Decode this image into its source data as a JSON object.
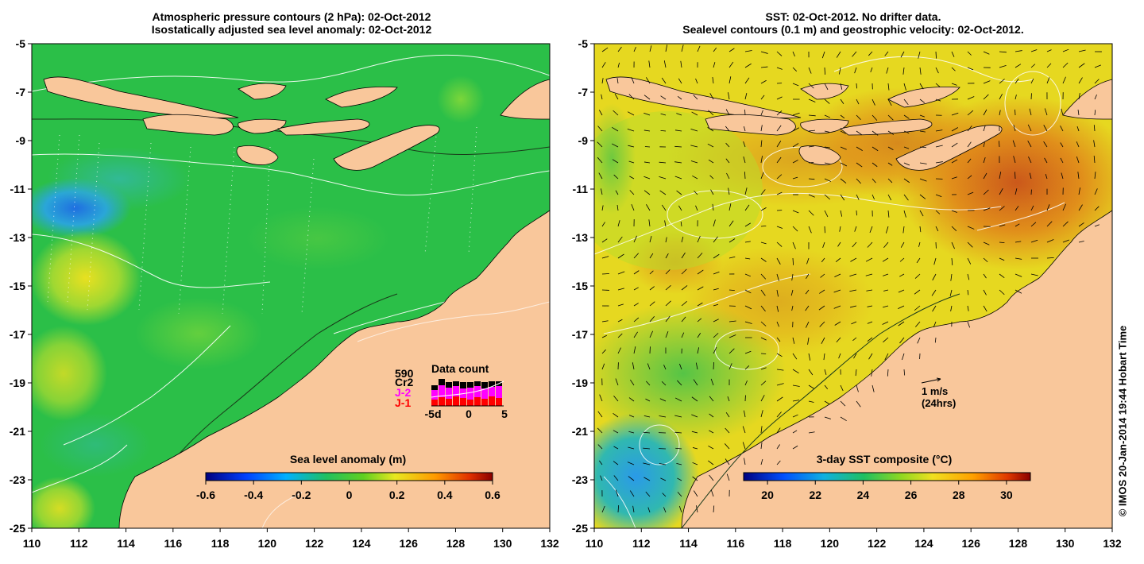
{
  "left_panel": {
    "title_line1": "Atmospheric pressure contours (2 hPa): 02-Oct-2012",
    "title_line2": "Isostatically adjusted sea level anomaly: 02-Oct-2012",
    "colorbar": {
      "label": "Sea level anomaly (m)",
      "ticks": [
        "-0.6",
        "-0.4",
        "-0.2",
        "0",
        "0.2",
        "0.4",
        "0.6"
      ]
    },
    "inset": {
      "title": "Data count",
      "total": "590",
      "missions": [
        {
          "name": "Cr2",
          "color": "#000000"
        },
        {
          "name": "J-2",
          "color": "#ff00ff"
        },
        {
          "name": "J-1",
          "color": "#ff0000"
        }
      ],
      "x_labels": [
        "-5d",
        "0",
        "5"
      ]
    }
  },
  "right_panel": {
    "title_line1": "SST: 02-Oct-2012. No drifter data.",
    "title_line2": "Sealevel contours (0.1 m) and geostrophic velocity: 02-Oct-2012.",
    "colorbar": {
      "label": "3-day SST composite (°C)",
      "ticks": [
        "20",
        "22",
        "24",
        "26",
        "28",
        "30"
      ]
    },
    "velocity_key": {
      "speed": "1 m/s",
      "note": "(24hrs)"
    }
  },
  "axes": {
    "lon_ticks": [
      "110",
      "112",
      "114",
      "116",
      "118",
      "120",
      "122",
      "124",
      "126",
      "128",
      "130",
      "132"
    ],
    "lat_ticks": [
      "-5",
      "-7",
      "-9",
      "-11",
      "-13",
      "-15",
      "-17",
      "-19",
      "-21",
      "-23",
      "-25"
    ]
  },
  "credit": "© IMOS 20-Jan-2014 19:44 Hobart Time",
  "colors": {
    "land": "#f9c79b",
    "sla_ocean": "#22c04a",
    "sst_ocean": "#e8d51e"
  }
}
